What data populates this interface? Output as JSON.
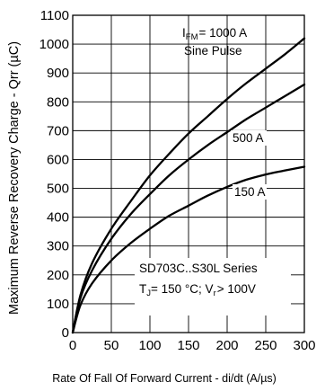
{
  "chart_data": {
    "type": "line",
    "title": "",
    "xlabel": "Rate Of Fall Of Forward Current - di/dt (A/µs)",
    "ylabel": "Maximum Reverse Recovery Charge - Qrr (µC)",
    "xlim": [
      0,
      300
    ],
    "ylim": [
      0,
      1100
    ],
    "xticks": [
      "0",
      "50",
      "100",
      "150",
      "200",
      "250",
      "300"
    ],
    "yticks": [
      "0",
      "100",
      "200",
      "300",
      "400",
      "500",
      "600",
      "700",
      "800",
      "900",
      "1000",
      "1100"
    ],
    "grid": true,
    "annotations": {
      "ifm_prefix": "I",
      "ifm_sub": "FM",
      "ifm_suffix": "= 1000 A",
      "pulse": "Sine Pulse",
      "series": "SD703C..S30L Series",
      "cond_tj": "T",
      "cond_tj_sub": "J",
      "cond_mid": "= 150 °C; V",
      "cond_vr_sub": "r",
      "cond_end": "> 100V"
    },
    "series": [
      {
        "name": "1000 A",
        "x": [
          0,
          10,
          25,
          50,
          75,
          100,
          125,
          150,
          175,
          200,
          225,
          250,
          275,
          300
        ],
        "y": [
          0,
          130,
          240,
          360,
          455,
          545,
          620,
          690,
          750,
          810,
          865,
          915,
          965,
          1020
        ]
      },
      {
        "name": "500 A",
        "x": [
          0,
          10,
          25,
          50,
          75,
          100,
          125,
          150,
          175,
          200,
          225,
          250,
          275,
          300
        ],
        "y": [
          0,
          120,
          215,
          325,
          410,
          480,
          545,
          600,
          650,
          695,
          740,
          780,
          820,
          860
        ]
      },
      {
        "name": "150 A",
        "x": [
          0,
          10,
          25,
          50,
          75,
          100,
          125,
          150,
          175,
          200,
          225,
          250,
          275,
          300
        ],
        "y": [
          0,
          95,
          170,
          250,
          310,
          360,
          405,
          440,
          475,
          505,
          530,
          548,
          562,
          575
        ]
      }
    ]
  }
}
